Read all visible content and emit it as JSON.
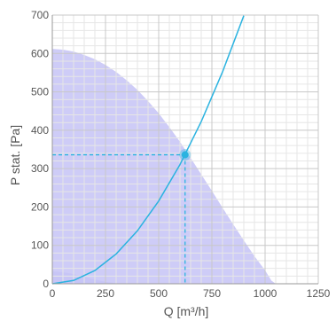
{
  "chart_data": {
    "type": "line",
    "xlabel": "Q [m³/h]",
    "ylabel": "P stat. [Pa]",
    "xlim": [
      0,
      1250
    ],
    "ylim": [
      0,
      700
    ],
    "x_ticks": [
      0,
      250,
      500,
      750,
      1000,
      1250
    ],
    "y_ticks": [
      0,
      100,
      200,
      300,
      400,
      500,
      600,
      700
    ],
    "x_minor_step": 50,
    "y_minor_step": 20,
    "grid": true,
    "colors": {
      "envelope_fill": "#c5c3f6",
      "system_curve": "#2bb3e0",
      "operating_point": "#2bb3e0",
      "major_grid": "#c8c8c8",
      "minor_grid": "#e6e6e6",
      "axis": "#999999",
      "text": "#555555"
    },
    "series": [
      {
        "kind": "area",
        "x": [
          0,
          50,
          100,
          150,
          200,
          250,
          300,
          350,
          400,
          450,
          500,
          550,
          600,
          650,
          700,
          750,
          800,
          850,
          900,
          950,
          1000,
          1030,
          1050
        ],
        "y": [
          612,
          610,
          605,
          596,
          585,
          570,
          552,
          530,
          505,
          476,
          444,
          408,
          370,
          328,
          285,
          242,
          198,
          155,
          113,
          72,
          35,
          8,
          0
        ]
      },
      {
        "kind": "area",
        "x": [
          0,
          50,
          100,
          150,
          200,
          250,
          300,
          350
        ],
        "y": [
          32,
          30,
          25,
          18,
          11,
          5,
          1,
          0
        ]
      },
      {
        "kind": "line",
        "x": [
          0,
          100,
          200,
          300,
          400,
          500,
          600,
          700,
          800,
          900
        ],
        "y": [
          0,
          8.6,
          34.5,
          77.6,
          138,
          215.6,
          310.4,
          422.5,
          551.9,
          698.4
        ]
      }
    ],
    "operating_point": {
      "x": 624,
      "y": 336
    }
  }
}
